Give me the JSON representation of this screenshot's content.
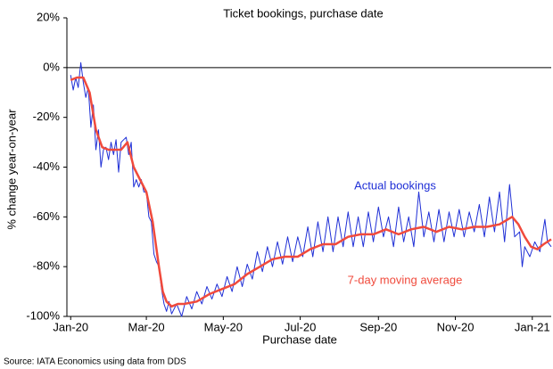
{
  "chart_data": {
    "type": "line",
    "title": "Ticket bookings, purchase date",
    "x_label": "Purchase date",
    "y_label": "% change year-on-year",
    "source": "Source: IATA Economics using data from DDS",
    "xlim": [
      -3,
      381
    ],
    "xticks": [
      {
        "value": 0,
        "label": "Jan-20"
      },
      {
        "value": 60,
        "label": "Mar-20"
      },
      {
        "value": 121,
        "label": "May-20"
      },
      {
        "value": 182,
        "label": "Jul-20"
      },
      {
        "value": 244,
        "label": "Sep-20"
      },
      {
        "value": 305,
        "label": "Nov-20"
      },
      {
        "value": 366,
        "label": "Jan-21"
      }
    ],
    "ylim": [
      -100,
      20
    ],
    "yticks": [
      {
        "value": -100,
        "label": "-100%"
      },
      {
        "value": -80,
        "label": "-80%"
      },
      {
        "value": -60,
        "label": "-60%"
      },
      {
        "value": -40,
        "label": "-40%"
      },
      {
        "value": -20,
        "label": "-20%"
      },
      {
        "value": 0,
        "label": "0%"
      },
      {
        "value": 20,
        "label": "20%"
      }
    ],
    "zero_line": true,
    "grid": false,
    "series": [
      {
        "name": "Actual bookings",
        "color": "#1f2fd6",
        "width": 1,
        "x": [
          0,
          2,
          4,
          6,
          8,
          10,
          12,
          14,
          16,
          18,
          20,
          22,
          24,
          26,
          28,
          30,
          32,
          34,
          36,
          38,
          40,
          42,
          44,
          46,
          48,
          50,
          52,
          54,
          56,
          58,
          60,
          62,
          64,
          66,
          68,
          70,
          72,
          74,
          76,
          78,
          80,
          84,
          88,
          92,
          96,
          100,
          104,
          108,
          112,
          116,
          120,
          124,
          128,
          132,
          136,
          140,
          144,
          148,
          152,
          156,
          160,
          164,
          168,
          172,
          176,
          180,
          184,
          188,
          192,
          196,
          200,
          204,
          208,
          212,
          216,
          220,
          224,
          228,
          232,
          236,
          240,
          244,
          248,
          252,
          256,
          260,
          264,
          268,
          272,
          276,
          280,
          284,
          288,
          292,
          296,
          300,
          304,
          308,
          312,
          316,
          320,
          324,
          328,
          332,
          336,
          340,
          344,
          348,
          352,
          356,
          358,
          360,
          364,
          368,
          372,
          376,
          378,
          381
        ],
        "values": [
          -3,
          -9,
          -4,
          -8,
          2,
          -6,
          -12,
          -8,
          -24,
          -15,
          -33,
          -25,
          -40,
          -33,
          -32,
          -37,
          -30,
          -35,
          -29,
          -42,
          -30,
          -29,
          -28,
          -35,
          -30,
          -48,
          -45,
          -48,
          -45,
          -50,
          -50,
          -60,
          -62,
          -75,
          -78,
          -80,
          -89,
          -95,
          -98,
          -94,
          -99,
          -95,
          -100,
          -92,
          -97,
          -90,
          -95,
          -88,
          -93,
          -87,
          -92,
          -84,
          -90,
          -80,
          -88,
          -79,
          -85,
          -74,
          -82,
          -72,
          -80,
          -70,
          -79,
          -68,
          -78,
          -68,
          -76,
          -64,
          -76,
          -62,
          -74,
          -60,
          -74,
          -60,
          -72,
          -58,
          -72,
          -60,
          -72,
          -58,
          -70,
          -56,
          -68,
          -60,
          -72,
          -56,
          -70,
          -60,
          -72,
          -50,
          -68,
          -58,
          -70,
          -57,
          -70,
          -58,
          -68,
          -57,
          -68,
          -58,
          -66,
          -55,
          -68,
          -52,
          -66,
          -50,
          -70,
          -47,
          -68,
          -66,
          -80,
          -72,
          -76,
          -70,
          -74,
          -61,
          -70,
          -72
        ]
      },
      {
        "name": "7-day moving average",
        "color": "#f04a3c",
        "width": 2.5,
        "x": [
          0,
          5,
          10,
          15,
          20,
          25,
          30,
          35,
          40,
          45,
          50,
          55,
          60,
          65,
          70,
          73,
          76,
          80,
          85,
          90,
          100,
          110,
          120,
          130,
          140,
          150,
          160,
          170,
          180,
          190,
          200,
          210,
          220,
          230,
          240,
          250,
          260,
          270,
          280,
          290,
          300,
          310,
          320,
          330,
          340,
          350,
          355,
          360,
          365,
          370,
          375,
          381
        ],
        "values": [
          -5,
          -4,
          -4,
          -10,
          -25,
          -32,
          -33,
          -33,
          -33,
          -30,
          -40,
          -45,
          -50,
          -62,
          -80,
          -90,
          -94,
          -96,
          -95,
          -95,
          -94,
          -91,
          -89,
          -87,
          -83,
          -80,
          -77,
          -76,
          -76,
          -73,
          -71,
          -71,
          -68,
          -67,
          -67,
          -65,
          -67,
          -65,
          -64,
          -66,
          -64,
          -65,
          -64,
          -64,
          -63,
          -60,
          -63,
          -68,
          -72,
          -73,
          -71,
          -69
        ]
      }
    ]
  }
}
